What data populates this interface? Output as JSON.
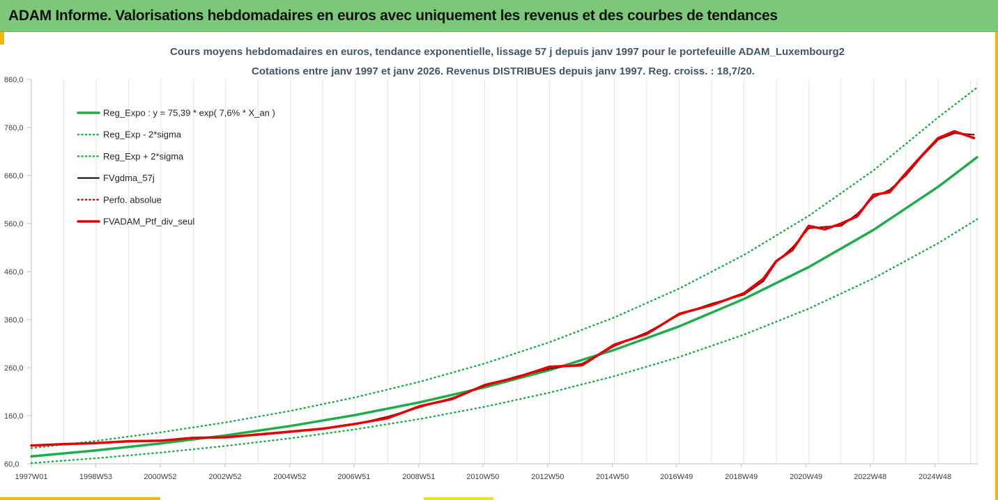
{
  "banner": {
    "title": "ADAM Informe. Valorisations hebdomadaires en euros avec uniquement les revenus et des courbes de tendances"
  },
  "colors": {
    "banner_bg": "#7dc77a",
    "accent": "#f2b705",
    "trend_green": "#1fad4a",
    "band_green": "#1fad4a",
    "moving_avg": "#000000",
    "perf_red": "#e00000",
    "portfolio_red": "#e60000",
    "title_text": "#44546a"
  },
  "chart_data": {
    "type": "line",
    "title": "Cours moyens hebdomadaires  en euros, tendance exponentielle, lissage 57 j depuis janv 1997 pour le portefeuille ADAM_Luxembourg2",
    "subtitle": "Cotations entre janv 1997 et janv 2026. Revenus DISTRIBUES depuis janv 1997. Reg. croiss. : 18,7/20.",
    "xlabel": "",
    "ylabel": "",
    "ylim": [
      60,
      860
    ],
    "xlim": [
      1997.0,
      2026.2
    ],
    "y_ticks": [
      60,
      160,
      260,
      360,
      460,
      560,
      660,
      760,
      860
    ],
    "y_tick_labels": [
      "60,0",
      "160,0",
      "260,0",
      "360,0",
      "460,0",
      "560,0",
      "660,0",
      "760,0",
      "860,0"
    ],
    "x_ticks": [
      {
        "x": 1997.0,
        "label": "1997W01"
      },
      {
        "x": 1998.99,
        "label": "1998W53"
      },
      {
        "x": 2000.98,
        "label": "2000W52"
      },
      {
        "x": 2002.98,
        "label": "2002W52"
      },
      {
        "x": 2004.98,
        "label": "2004W52"
      },
      {
        "x": 2006.96,
        "label": "2006W51"
      },
      {
        "x": 2008.96,
        "label": "2008W51"
      },
      {
        "x": 2010.94,
        "label": "2010W50"
      },
      {
        "x": 2012.94,
        "label": "2012W50"
      },
      {
        "x": 2014.94,
        "label": "2014W50"
      },
      {
        "x": 2016.92,
        "label": "2016W49"
      },
      {
        "x": 2018.92,
        "label": "2018W49"
      },
      {
        "x": 2020.92,
        "label": "2020W49"
      },
      {
        "x": 2022.9,
        "label": "2022W48"
      },
      {
        "x": 2024.9,
        "label": "2024W48"
      }
    ],
    "grid": true,
    "legend_position": "top-left",
    "series": [
      {
        "name": "Reg_Expo : y = 75,39 * exp( 7,6% *  X_an )",
        "style": "solid-thick",
        "color": "#1fad4a",
        "x": [
          1997.0,
          1999.0,
          2001.0,
          2003.0,
          2005.0,
          2007.0,
          2009.0,
          2011.0,
          2013.0,
          2015.0,
          2017.0,
          2019.0,
          2021.0,
          2023.0,
          2025.0,
          2026.2
        ],
        "values": [
          75.4,
          87.8,
          102.3,
          119.1,
          138.7,
          161.5,
          188.1,
          219.1,
          255.1,
          297.1,
          346.0,
          403.0,
          469.3,
          546.6,
          636.5,
          698.0
        ]
      },
      {
        "name": "Reg_Exp - 2*sigma",
        "style": "dotted",
        "color": "#1fad4a",
        "x": [
          1997.0,
          1999.0,
          2001.0,
          2003.0,
          2005.0,
          2007.0,
          2009.0,
          2011.0,
          2013.0,
          2015.0,
          2017.0,
          2019.0,
          2021.0,
          2023.0,
          2025.0,
          2026.2
        ],
        "values": [
          61.5,
          71.6,
          83.4,
          97.1,
          113.1,
          131.7,
          153.4,
          178.7,
          208.1,
          242.3,
          282.2,
          328.7,
          382.8,
          445.8,
          519.2,
          569.0
        ]
      },
      {
        "name": "Reg_Exp + 2*sigma",
        "style": "dotted",
        "color": "#1fad4a",
        "x": [
          1997.0,
          1999.0,
          2001.0,
          2003.0,
          2005.0,
          2007.0,
          2009.0,
          2011.0,
          2013.0,
          2015.0,
          2017.0,
          2019.0,
          2021.0,
          2023.0,
          2025.0,
          2026.2
        ],
        "values": [
          92.5,
          107.7,
          125.5,
          146.1,
          170.2,
          198.2,
          230.8,
          268.8,
          313.1,
          364.6,
          424.6,
          494.5,
          575.9,
          670.6,
          781.0,
          843.0
        ]
      },
      {
        "name": "FVgdma_57j",
        "style": "solid",
        "color": "#000000",
        "x": [
          1997.0,
          1998.0,
          1999.0,
          2000.0,
          2001.0,
          2002.0,
          2003.0,
          2004.0,
          2005.0,
          2006.0,
          2007.0,
          2008.0,
          2009.0,
          2010.0,
          2011.0,
          2012.0,
          2013.0,
          2014.0,
          2015.0,
          2016.0,
          2017.0,
          2018.0,
          2019.0,
          2019.6,
          2020.0,
          2020.5,
          2021.0,
          2021.5,
          2022.0,
          2022.5,
          2023.0,
          2023.5,
          2024.0,
          2024.5,
          2025.0,
          2025.5,
          2026.1
        ],
        "values": [
          98,
          100,
          103,
          106,
          109,
          113,
          116,
          120,
          126,
          134,
          142,
          158,
          178,
          197,
          222,
          242,
          258,
          268,
          305,
          333,
          370,
          393,
          412,
          440,
          480,
          510,
          550,
          553,
          555,
          580,
          615,
          630,
          660,
          700,
          735,
          748,
          745
        ]
      },
      {
        "name": "Perfo. absolue",
        "style": "dotted",
        "color": "#e00000",
        "x": [
          1997.0,
          1998.0,
          1999.0,
          2000.0,
          2001.0,
          2002.0,
          2003.0,
          2004.0,
          2005.0,
          2006.0,
          2007.0,
          2008.0,
          2009.0,
          2010.0,
          2011.0,
          2012.0,
          2013.0,
          2014.0,
          2015.0,
          2016.0,
          2017.0,
          2018.0,
          2019.0,
          2019.6,
          2020.0,
          2020.5,
          2021.0,
          2021.5,
          2022.0,
          2022.5,
          2023.0,
          2023.5,
          2024.0,
          2024.5,
          2025.0,
          2025.5,
          2026.1
        ],
        "values": [
          98,
          100,
          103,
          106,
          109,
          113,
          116,
          120,
          126,
          134,
          142,
          158,
          178,
          197,
          222,
          242,
          258,
          268,
          305,
          333,
          370,
          393,
          412,
          440,
          480,
          510,
          550,
          553,
          555,
          580,
          615,
          630,
          660,
          700,
          735,
          748,
          745
        ]
      },
      {
        "name": "FVADAM_Ptf_div_seul",
        "style": "solid-thick",
        "color": "#e60000",
        "x": [
          1997.0,
          1998.0,
          1999.0,
          2000.0,
          2001.0,
          2002.0,
          2003.0,
          2004.0,
          2005.0,
          2006.0,
          2007.0,
          2008.0,
          2009.0,
          2010.0,
          2011.0,
          2012.0,
          2013.0,
          2014.0,
          2015.0,
          2016.0,
          2017.0,
          2018.0,
          2019.0,
          2019.6,
          2020.0,
          2020.5,
          2021.0,
          2021.5,
          2022.0,
          2022.5,
          2023.0,
          2023.5,
          2024.0,
          2024.5,
          2025.0,
          2025.5,
          2026.1
        ],
        "values": [
          98,
          101,
          103,
          107,
          108,
          114,
          115,
          121,
          127,
          133,
          143,
          155,
          180,
          195,
          224,
          240,
          262,
          265,
          308,
          330,
          372,
          390,
          415,
          445,
          482,
          505,
          555,
          548,
          560,
          575,
          620,
          625,
          665,
          702,
          738,
          752,
          738
        ]
      }
    ]
  }
}
